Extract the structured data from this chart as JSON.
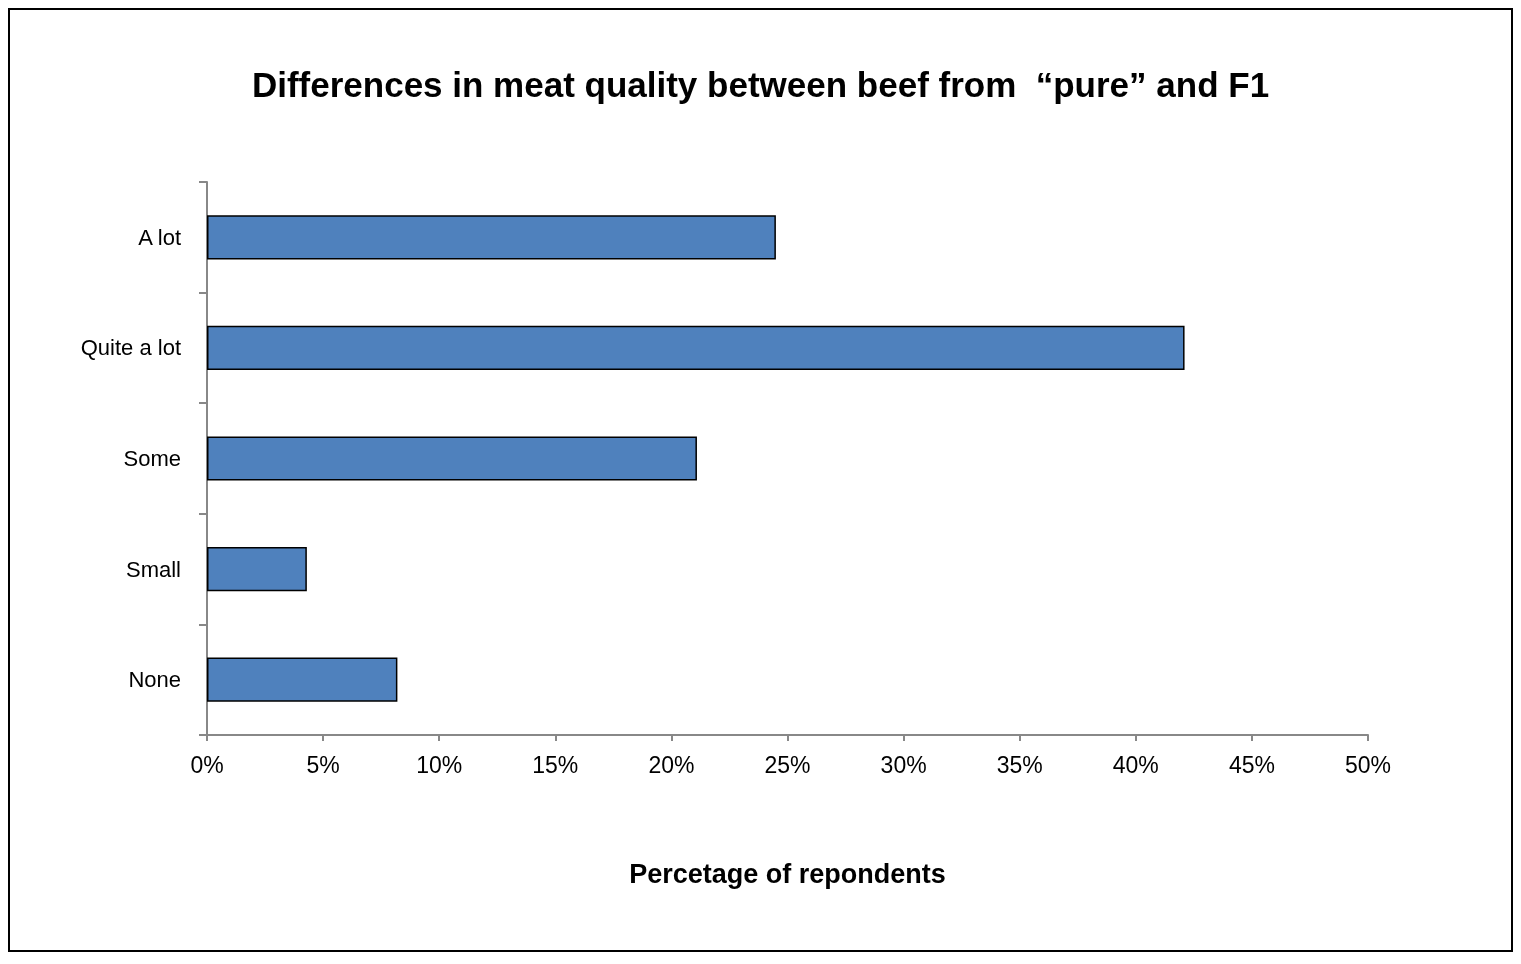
{
  "chart_data": {
    "type": "bar",
    "orientation": "horizontal",
    "title": "Differences in meat quality between beef from  “pure” and F1",
    "xlabel": "Percetage of repondents",
    "categories": [
      "A lot",
      "Quite a lot",
      "Some",
      "Small",
      "None"
    ],
    "values": [
      24.5,
      42.1,
      21.1,
      4.3,
      8.2
    ],
    "color": "#4f81bd",
    "xlim": [
      0,
      50
    ],
    "xticks": [
      {
        "value": 0,
        "label": "0%"
      },
      {
        "value": 5,
        "label": "5%"
      },
      {
        "value": 10,
        "label": "10%"
      },
      {
        "value": 15,
        "label": "15%"
      },
      {
        "value": 20,
        "label": "20%"
      },
      {
        "value": 25,
        "label": "25%"
      },
      {
        "value": 30,
        "label": "30%"
      },
      {
        "value": 35,
        "label": "35%"
      },
      {
        "value": 40,
        "label": "40%"
      },
      {
        "value": 45,
        "label": "45%"
      },
      {
        "value": 50,
        "label": "50%"
      }
    ],
    "grid": false
  }
}
